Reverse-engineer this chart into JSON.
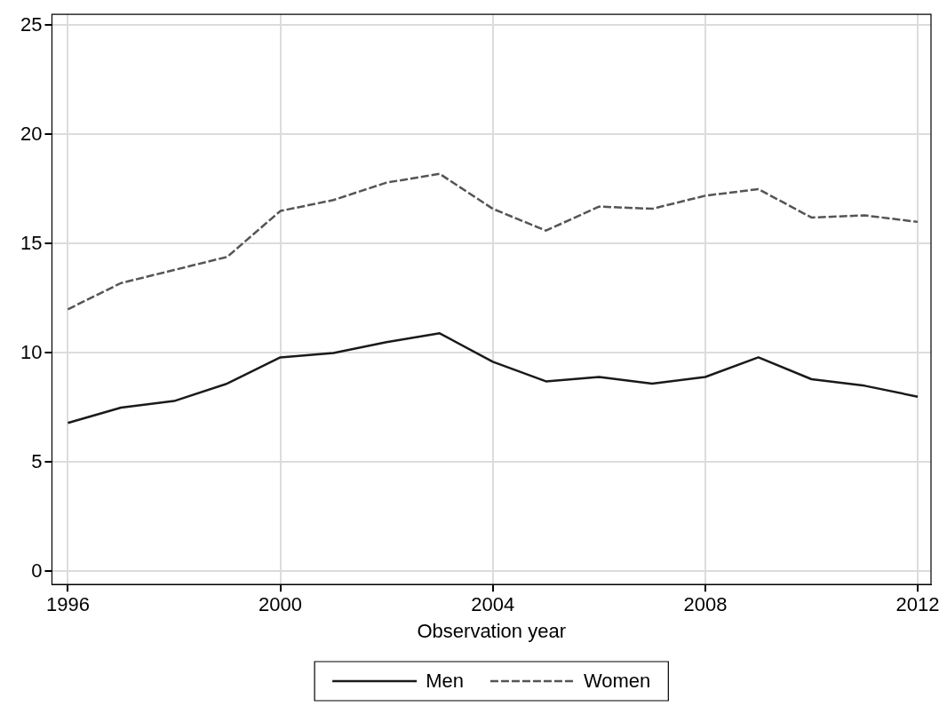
{
  "chart_data": {
    "type": "line",
    "xlabel": "Observation year",
    "x": [
      1996,
      1997,
      1998,
      1999,
      2000,
      2001,
      2002,
      2003,
      2004,
      2005,
      2006,
      2007,
      2008,
      2009,
      2010,
      2011,
      2012
    ],
    "series": [
      {
        "name": "Men",
        "color": "#1a1a1a",
        "line_style": "solid",
        "values": [
          6.8,
          7.5,
          7.8,
          8.6,
          9.8,
          10.0,
          10.5,
          10.9,
          9.6,
          8.7,
          8.9,
          8.6,
          8.9,
          9.8,
          8.8,
          8.5,
          8.0
        ]
      },
      {
        "name": "Women",
        "color": "#555555",
        "line_style": "dashed",
        "values": [
          12.0,
          13.2,
          13.8,
          14.4,
          16.5,
          17.0,
          17.8,
          18.2,
          16.6,
          15.6,
          16.7,
          16.6,
          17.2,
          17.5,
          16.2,
          16.3,
          16.0
        ]
      }
    ],
    "xlim": [
      1995.7,
      2012.25
    ],
    "xticks": [
      1996,
      2000,
      2004,
      2008,
      2012
    ],
    "ylim": [
      -0.6,
      25.5
    ],
    "yticks": [
      0,
      5,
      10,
      15,
      20,
      25
    ],
    "grid": true,
    "legend": "bottom",
    "marker": "none"
  }
}
